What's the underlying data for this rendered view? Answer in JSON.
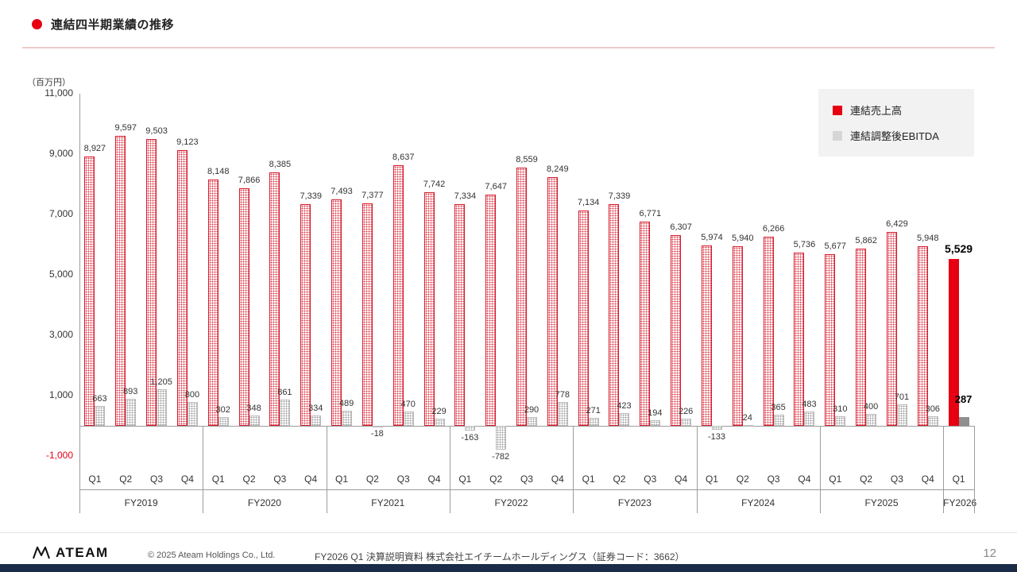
{
  "header": {
    "title": "連結四半期業績の推移"
  },
  "colors": {
    "accent_red": "#e60012",
    "ebitda_gray": "#8f8f8f"
  },
  "legend": [
    {
      "label": "連結売上高",
      "color": "#e60012"
    },
    {
      "label": "連結調整後EBITDA",
      "color": "#d6d6d6"
    }
  ],
  "chart_data": {
    "type": "bar",
    "title": "連結四半期業績の推移",
    "unit_label": "（百万円）",
    "ylim": [
      -1000,
      11000
    ],
    "yticks": [
      11000,
      9000,
      7000,
      5000,
      3000,
      1000,
      -1000
    ],
    "grid": false,
    "legend_position": "top-right",
    "fiscal_years": [
      {
        "label": "FY2019",
        "quarters": [
          "Q1",
          "Q2",
          "Q3",
          "Q4"
        ]
      },
      {
        "label": "FY2020",
        "quarters": [
          "Q1",
          "Q2",
          "Q3",
          "Q4"
        ]
      },
      {
        "label": "FY2021",
        "quarters": [
          "Q1",
          "Q2",
          "Q3",
          "Q4"
        ]
      },
      {
        "label": "FY2022",
        "quarters": [
          "Q1",
          "Q2",
          "Q3",
          "Q4"
        ]
      },
      {
        "label": "FY2023",
        "quarters": [
          "Q1",
          "Q2",
          "Q3",
          "Q4"
        ]
      },
      {
        "label": "FY2024",
        "quarters": [
          "Q1",
          "Q2",
          "Q3",
          "Q4"
        ]
      },
      {
        "label": "FY2025",
        "quarters": [
          "Q1",
          "Q2",
          "Q3",
          "Q4"
        ]
      },
      {
        "label": "FY2026",
        "quarters": [
          "Q1"
        ]
      }
    ],
    "series": [
      {
        "name": "連結売上高",
        "values": [
          8927,
          9597,
          9503,
          9123,
          8148,
          7866,
          8385,
          7339,
          7493,
          7377,
          8637,
          7742,
          7334,
          7647,
          8559,
          8249,
          7134,
          7339,
          6771,
          6307,
          5974,
          5940,
          6266,
          5736,
          5677,
          5862,
          6429,
          5948,
          5529
        ]
      },
      {
        "name": "連結調整後EBITDA",
        "values": [
          663,
          893,
          1205,
          800,
          302,
          348,
          861,
          334,
          489,
          -18,
          470,
          229,
          -163,
          -782,
          290,
          778,
          271,
          423,
          194,
          226,
          -133,
          24,
          365,
          483,
          310,
          400,
          701,
          306,
          287
        ]
      }
    ],
    "highlight_last": true
  },
  "footer": {
    "logo_text": "ATEAM",
    "copyright": "© 2025 Ateam Holdings Co., Ltd.",
    "document": "FY2026 Q1 決算説明資料 株式会社エイチームホールディングス（証券コード：3662）",
    "page": "12"
  }
}
